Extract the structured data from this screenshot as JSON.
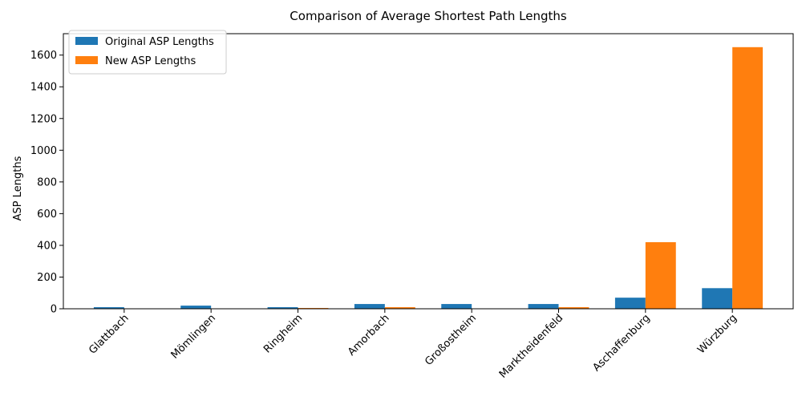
{
  "chart_data": {
    "type": "bar",
    "title": "Comparison of Average Shortest Path Lengths",
    "xlabel": "",
    "ylabel": "ASP Lengths",
    "categories": [
      "Glattbach",
      "Mömlingen",
      "Ringheim",
      "Amorbach",
      "Großostheim",
      "Marktheidenfeld",
      "Aschaffenburg",
      "Würzburg"
    ],
    "series": [
      {
        "name": "Original ASP Lengths",
        "color": "#1f77b4",
        "values": [
          10,
          20,
          10,
          30,
          30,
          30,
          70,
          130
        ]
      },
      {
        "name": "New ASP Lengths",
        "color": "#ff7f0e",
        "values": [
          0,
          0,
          5,
          10,
          0,
          10,
          420,
          1650
        ]
      }
    ],
    "ylim": [
      0,
      1735
    ],
    "yticks": [
      0,
      200,
      400,
      600,
      800,
      1000,
      1200,
      1400,
      1600
    ],
    "legend": "top-left",
    "grid": false,
    "xtick_rotation": 45
  }
}
